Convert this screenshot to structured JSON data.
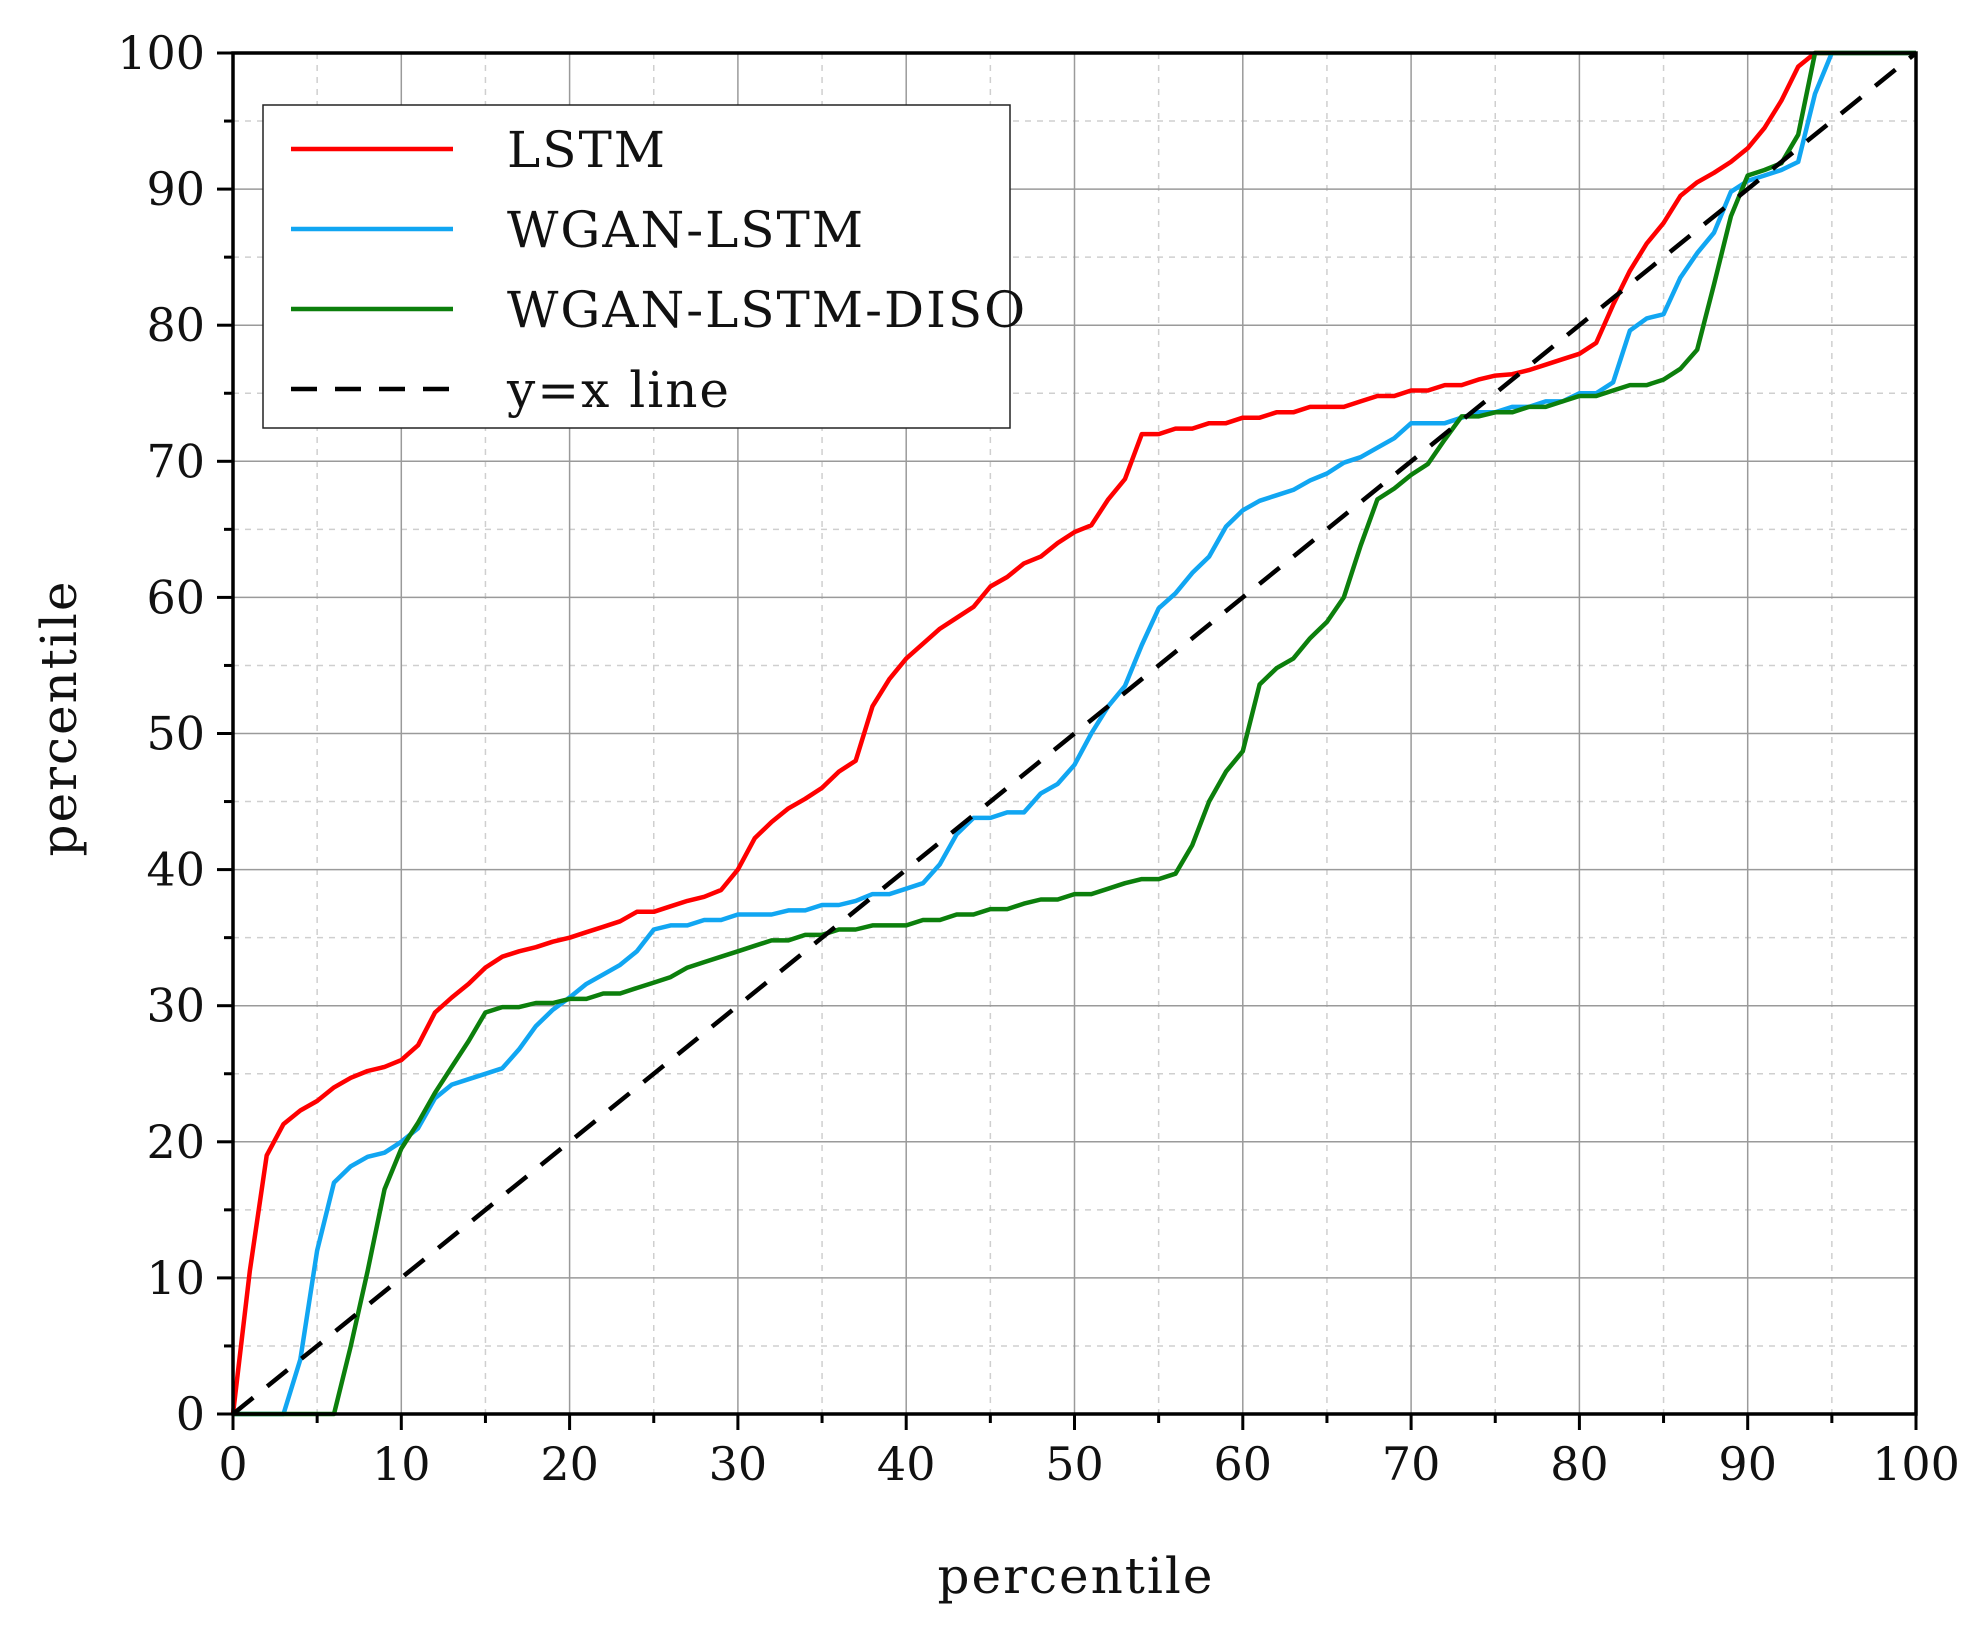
{
  "chart_data": {
    "type": "line",
    "title": "",
    "xlabel": "percentile",
    "ylabel": "percentile",
    "xlim": [
      0,
      100
    ],
    "ylim": [
      0,
      100
    ],
    "major_tick_step": 10,
    "minor_tick_step": 5,
    "grid": true,
    "legend_position": "top-left",
    "ticks": [
      "0",
      "10",
      "20",
      "30",
      "40",
      "50",
      "60",
      "70",
      "80",
      "90",
      "100"
    ],
    "series": [
      {
        "name": "LSTM",
        "color": "#ff0000",
        "style": "solid",
        "x": [
          0,
          1,
          2,
          3,
          4,
          5,
          6,
          7,
          8,
          9,
          10,
          11,
          12,
          13,
          14,
          15,
          16,
          17,
          18,
          19,
          20,
          21,
          22,
          23,
          24,
          25,
          26,
          27,
          28,
          29,
          30,
          31,
          32,
          33,
          34,
          35,
          36,
          37,
          38,
          39,
          40,
          41,
          42,
          43,
          44,
          45,
          46,
          47,
          48,
          49,
          50,
          51,
          52,
          53,
          54,
          55,
          56,
          57,
          58,
          59,
          60,
          61,
          62,
          63,
          64,
          65,
          66,
          67,
          68,
          69,
          70,
          71,
          72,
          73,
          74,
          75,
          76,
          77,
          78,
          79,
          80,
          81,
          82,
          83,
          84,
          85,
          86,
          87,
          88,
          89,
          90,
          91,
          92,
          93,
          94,
          95,
          96,
          97,
          98,
          99,
          100
        ],
        "y": [
          0,
          10.5,
          19,
          21.3,
          22.3,
          23,
          24,
          24.7,
          25.2,
          25.5,
          26,
          27.1,
          29.5,
          30.6,
          31.6,
          32.8,
          33.6,
          34,
          34.3,
          34.7,
          35,
          35.4,
          35.8,
          36.2,
          36.9,
          36.9,
          37.3,
          37.7,
          38,
          38.5,
          40,
          42.3,
          43.5,
          44.5,
          45.2,
          46,
          47.2,
          48,
          52,
          54,
          55.5,
          56.6,
          57.7,
          58.5,
          59.3,
          60.8,
          61.5,
          62.5,
          63,
          64,
          64.8,
          65.3,
          67.2,
          68.7,
          72,
          72,
          72.4,
          72.4,
          72.8,
          72.8,
          73.2,
          73.2,
          73.6,
          73.6,
          74,
          74,
          74,
          74.4,
          74.8,
          74.8,
          75.2,
          75.2,
          75.6,
          75.6,
          76,
          76.3,
          76.4,
          76.7,
          77.1,
          77.5,
          77.9,
          78.7,
          81.5,
          84,
          86,
          87.5,
          89.5,
          90.5,
          91.2,
          92,
          93,
          94.5,
          96.5,
          99,
          100,
          100,
          100,
          100,
          100,
          100,
          100
        ]
      },
      {
        "name": "WGAN-LSTM",
        "color": "#11a6f2",
        "style": "solid",
        "x": [
          0,
          1,
          2,
          3,
          4,
          5,
          6,
          7,
          8,
          9,
          10,
          11,
          12,
          13,
          14,
          15,
          16,
          17,
          18,
          19,
          20,
          21,
          22,
          23,
          24,
          25,
          26,
          27,
          28,
          29,
          30,
          31,
          32,
          33,
          34,
          35,
          36,
          37,
          38,
          39,
          40,
          41,
          42,
          43,
          44,
          45,
          46,
          47,
          48,
          49,
          50,
          51,
          52,
          53,
          54,
          55,
          56,
          57,
          58,
          59,
          60,
          61,
          62,
          63,
          64,
          65,
          66,
          67,
          68,
          69,
          70,
          71,
          72,
          73,
          74,
          75,
          76,
          77,
          78,
          79,
          80,
          81,
          82,
          83,
          84,
          85,
          86,
          87,
          88,
          89,
          90,
          91,
          92,
          93,
          94,
          95,
          96,
          97,
          98,
          99,
          100
        ],
        "y": [
          0,
          0,
          0,
          0,
          4,
          12,
          17,
          18.2,
          18.9,
          19.2,
          20,
          21,
          23.2,
          24.2,
          24.6,
          25,
          25.4,
          26.8,
          28.5,
          29.7,
          30.6,
          31.6,
          32.3,
          33,
          34,
          35.6,
          35.9,
          35.9,
          36.3,
          36.3,
          36.7,
          36.7,
          36.7,
          37,
          37,
          37.4,
          37.4,
          37.7,
          38.2,
          38.2,
          38.6,
          39,
          40.4,
          42.6,
          43.8,
          43.8,
          44.2,
          44.2,
          45.6,
          46.3,
          47.7,
          50,
          52,
          53.5,
          56.5,
          59.2,
          60.3,
          61.8,
          63,
          65.2,
          66.4,
          67.1,
          67.5,
          67.9,
          68.6,
          69.1,
          69.9,
          70.3,
          71,
          71.7,
          72.8,
          72.8,
          72.8,
          73.2,
          73.6,
          73.6,
          74,
          74,
          74.4,
          74.4,
          75,
          75,
          75.8,
          79.6,
          80.5,
          80.8,
          83.5,
          85.3,
          86.8,
          89.8,
          90.6,
          91,
          91.4,
          92,
          97,
          100,
          100,
          100,
          100,
          100,
          100
        ]
      },
      {
        "name": "WGAN-LSTM-DISO",
        "color": "#0c7f0c",
        "style": "solid",
        "x": [
          0,
          1,
          2,
          3,
          4,
          5,
          6,
          7,
          8,
          9,
          10,
          11,
          12,
          13,
          14,
          15,
          16,
          17,
          18,
          19,
          20,
          21,
          22,
          23,
          24,
          25,
          26,
          27,
          28,
          29,
          30,
          31,
          32,
          33,
          34,
          35,
          36,
          37,
          38,
          39,
          40,
          41,
          42,
          43,
          44,
          45,
          46,
          47,
          48,
          49,
          50,
          51,
          52,
          53,
          54,
          55,
          56,
          57,
          58,
          59,
          60,
          61,
          62,
          63,
          64,
          65,
          66,
          67,
          68,
          69,
          70,
          71,
          72,
          73,
          74,
          75,
          76,
          77,
          78,
          79,
          80,
          81,
          82,
          83,
          84,
          85,
          86,
          87,
          88,
          89,
          90,
          91,
          92,
          93,
          94,
          95,
          96,
          97,
          98,
          99,
          100
        ],
        "y": [
          0,
          0,
          0,
          0,
          0,
          0,
          0,
          5,
          10.5,
          16.5,
          19.5,
          21.4,
          23.6,
          25.5,
          27.4,
          29.5,
          29.9,
          29.9,
          30.2,
          30.2,
          30.5,
          30.5,
          30.9,
          30.9,
          31.3,
          31.7,
          32.1,
          32.8,
          33.2,
          33.6,
          34,
          34.4,
          34.8,
          34.8,
          35.2,
          35.2,
          35.6,
          35.6,
          35.9,
          35.9,
          35.9,
          36.3,
          36.3,
          36.7,
          36.7,
          37.1,
          37.1,
          37.5,
          37.8,
          37.8,
          38.2,
          38.2,
          38.6,
          39,
          39.3,
          39.3,
          39.7,
          41.8,
          45,
          47.2,
          48.7,
          53.6,
          54.8,
          55.5,
          57,
          58.2,
          60,
          63.8,
          67.2,
          68,
          69,
          69.8,
          71.6,
          73.3,
          73.3,
          73.6,
          73.6,
          74,
          74,
          74.4,
          74.8,
          74.8,
          75.2,
          75.6,
          75.6,
          76,
          76.8,
          78.2,
          83,
          88,
          91,
          91.4,
          91.9,
          94,
          100,
          100,
          100,
          100,
          100,
          100,
          100
        ]
      },
      {
        "name": "y=x line",
        "color": "#000000",
        "style": "dashed",
        "x": [
          0,
          100
        ],
        "y": [
          0,
          100
        ]
      }
    ]
  }
}
